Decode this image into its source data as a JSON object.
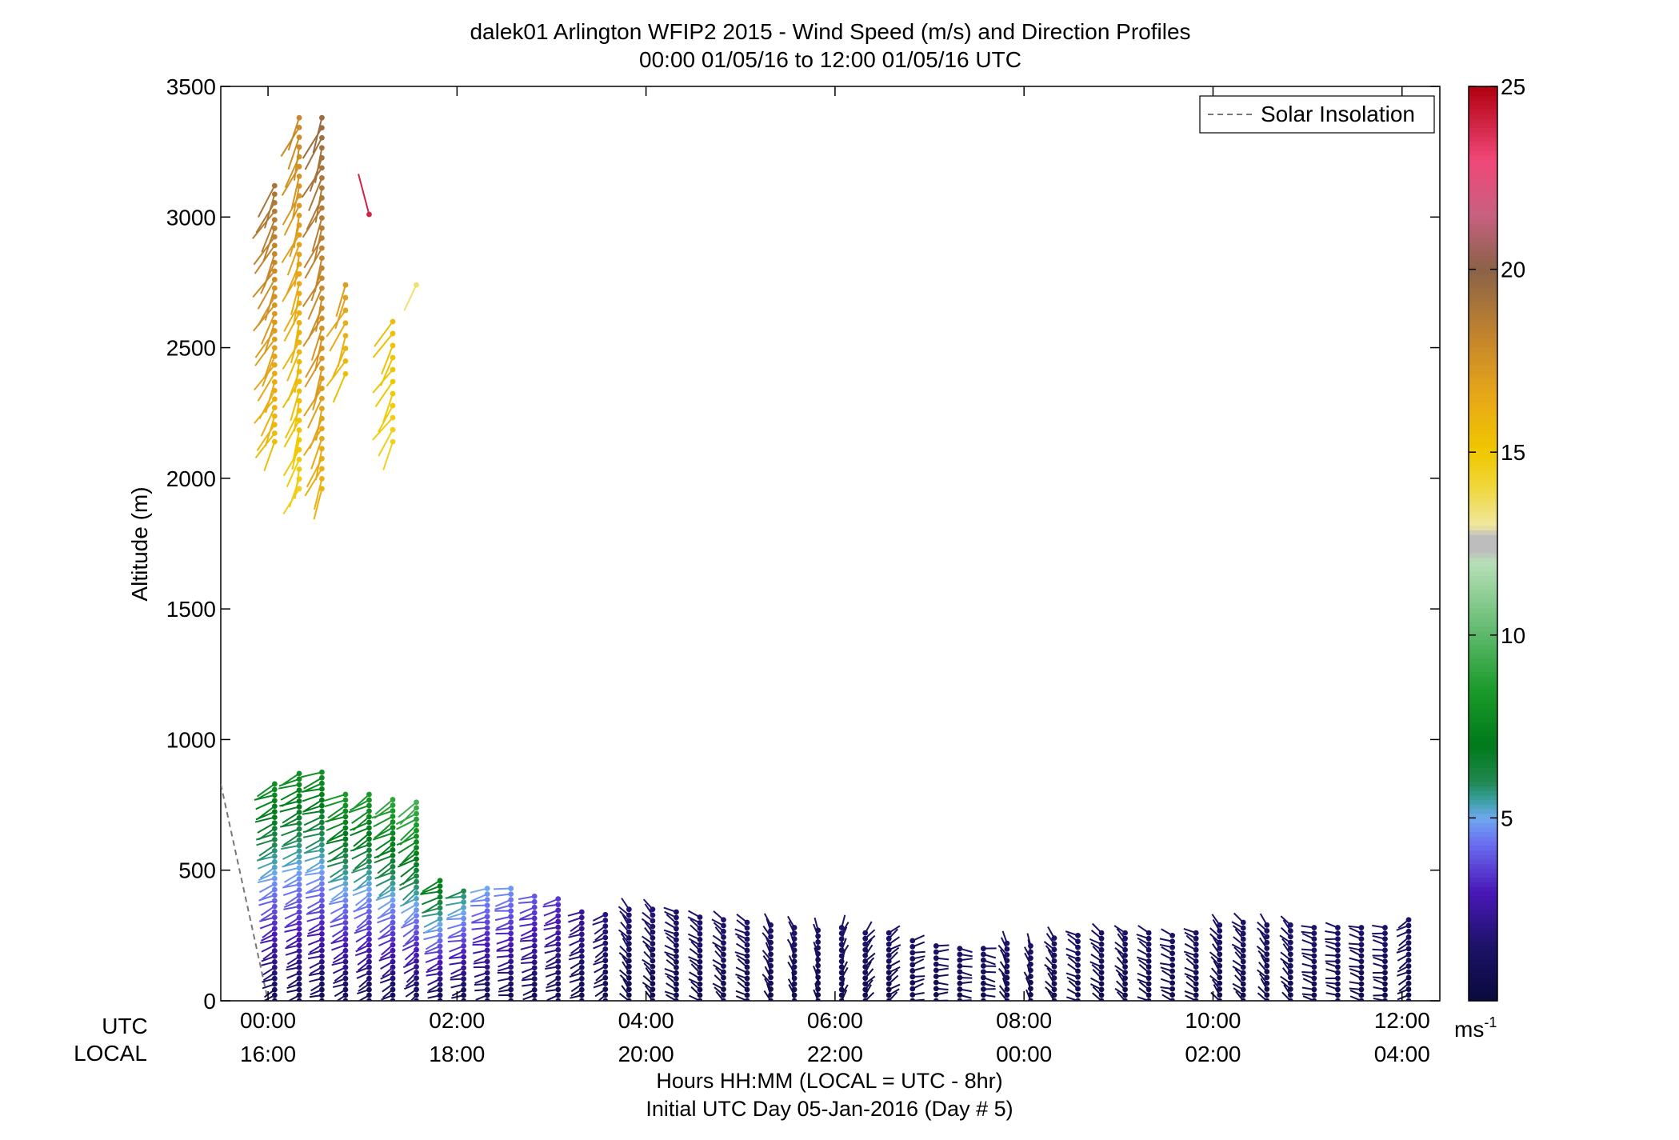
{
  "chart_data": {
    "type": "wind-barb-profile",
    "title": "dalek01 Arlington WFIP2 2015 - Wind Speed (m/s) and Direction Profiles",
    "subtitle": "00:00 01/05/16 to 12:00 01/05/16  UTC",
    "ylabel": "Altitude (m)",
    "ylim": [
      0,
      3500
    ],
    "yticks": [
      0,
      500,
      1000,
      1500,
      2000,
      2500,
      3000,
      3500
    ],
    "xlim_hours_utc": [
      -0.5,
      12.4
    ],
    "utc_row_label": "UTC",
    "local_row_label": "LOCAL",
    "utc_ticks": [
      "00:00",
      "02:00",
      "04:00",
      "06:00",
      "08:00",
      "10:00",
      "12:00"
    ],
    "local_ticks": [
      "16:00",
      "18:00",
      "20:00",
      "22:00",
      "00:00",
      "02:00",
      "04:00"
    ],
    "tick_hours_utc": [
      0,
      2,
      4,
      6,
      8,
      10,
      12
    ],
    "xlabel": "Hours HH:MM  (LOCAL = UTC - 8hr)",
    "xlabel2": "Initial UTC Day 05-Jan-2016 (Day # 5)",
    "legend": {
      "label": "Solar Insolation",
      "placement": "top-right",
      "style": "dashed",
      "color": "#777777"
    },
    "solar_insolation": {
      "x_hours": [
        -0.5,
        0.0
      ],
      "y_m": [
        830,
        0
      ]
    },
    "colorbar": {
      "min": 0,
      "max": 25,
      "ticks": [
        5,
        10,
        15,
        20,
        25
      ],
      "unit_label": "ms",
      "unit_exponent": "-1",
      "stops": [
        {
          "v": 0,
          "c": "#0a0a3c"
        },
        {
          "v": 1.5,
          "c": "#1c1268"
        },
        {
          "v": 3,
          "c": "#4a18b8"
        },
        {
          "v": 4.3,
          "c": "#6a6ef0"
        },
        {
          "v": 5,
          "c": "#70a8f0"
        },
        {
          "v": 5.5,
          "c": "#3aa0a0"
        },
        {
          "v": 6,
          "c": "#208850"
        },
        {
          "v": 7,
          "c": "#007a1a"
        },
        {
          "v": 8.5,
          "c": "#1a9a2a"
        },
        {
          "v": 10,
          "c": "#5cb86a"
        },
        {
          "v": 12,
          "c": "#b8e0b8"
        },
        {
          "v": 12.3,
          "c": "#bdbdbd"
        },
        {
          "v": 12.7,
          "c": "#bdbdbd"
        },
        {
          "v": 13,
          "c": "#f0e8a0"
        },
        {
          "v": 14,
          "c": "#f0d840"
        },
        {
          "v": 15,
          "c": "#f0c800"
        },
        {
          "v": 16.5,
          "c": "#e8a818"
        },
        {
          "v": 18,
          "c": "#c8882a"
        },
        {
          "v": 20,
          "c": "#8a6248"
        },
        {
          "v": 21.5,
          "c": "#c86080"
        },
        {
          "v": 23,
          "c": "#f04878"
        },
        {
          "v": 25,
          "c": "#b00010"
        }
      ]
    },
    "series": [
      {
        "time_h": 0.07,
        "upper": {
          "z": [
            2140,
            3120
          ],
          "n": 31,
          "speed": [
            15.5,
            19
          ],
          "dir": 208
        },
        "lower": {
          "z": [
            0,
            830
          ],
          "n": 40,
          "speed": [
            0.8,
            8
          ],
          "dir": 245
        }
      },
      {
        "time_h": 0.33,
        "upper": {
          "z": [
            1960,
            3380
          ],
          "n": 39,
          "speed": [
            14.5,
            18
          ],
          "dir": 200
        },
        "lower": {
          "z": [
            0,
            870
          ],
          "n": 42,
          "speed": [
            0.8,
            8
          ],
          "dir": 248
        }
      },
      {
        "time_h": 0.57,
        "upper": {
          "z": [
            1960,
            3380
          ],
          "n": 38,
          "speed": [
            16,
            19.5
          ],
          "dir": 202
        },
        "lower": {
          "z": [
            0,
            875
          ],
          "n": 42,
          "speed": [
            0.8,
            8
          ],
          "dir": 250
        }
      },
      {
        "time_h": 0.82,
        "upper": {
          "z": [
            2400,
            2740
          ],
          "n": 8,
          "speed": [
            15.5,
            17
          ],
          "dir": 205
        },
        "lower": {
          "z": [
            0,
            790
          ],
          "n": 38,
          "speed": [
            0.8,
            8.5
          ],
          "dir": 245
        }
      },
      {
        "time_h": 1.07,
        "upper": {
          "z": [
            3010,
            3010
          ],
          "n": 1,
          "speed": [
            24,
            24
          ],
          "dir": 335
        },
        "lower": {
          "z": [
            0,
            790
          ],
          "n": 38,
          "speed": [
            0.8,
            8.5
          ],
          "dir": 240
        }
      },
      {
        "time_h": 1.32,
        "upper": {
          "z": [
            2140,
            2600
          ],
          "n": 11,
          "speed": [
            14.5,
            15.5
          ],
          "dir": 210
        },
        "lower": {
          "z": [
            0,
            770
          ],
          "n": 37,
          "speed": [
            0.8,
            9
          ],
          "dir": 240
        }
      },
      {
        "time_h": 1.57,
        "upper": {
          "z": [
            2740,
            2740
          ],
          "n": 1,
          "speed": [
            13.5,
            13.5
          ],
          "dir": 200
        },
        "lower": {
          "z": [
            0,
            760
          ],
          "n": 36,
          "speed": [
            0.8,
            9.5
          ],
          "dir": 235
        }
      },
      {
        "time_h": 1.82,
        "lower": {
          "z": [
            0,
            460
          ],
          "n": 23,
          "speed": [
            0.8,
            7.5
          ],
          "dir": 250
        }
      },
      {
        "time_h": 2.07,
        "lower": {
          "z": [
            0,
            420
          ],
          "n": 21,
          "speed": [
            0.8,
            6
          ],
          "dir": 255
        }
      },
      {
        "time_h": 2.32,
        "lower": {
          "z": [
            0,
            430
          ],
          "n": 21,
          "speed": [
            0.8,
            5
          ],
          "dir": 258
        }
      },
      {
        "time_h": 2.57,
        "lower": {
          "z": [
            0,
            430
          ],
          "n": 21,
          "speed": [
            0.8,
            4.8
          ],
          "dir": 258
        }
      },
      {
        "time_h": 2.82,
        "lower": {
          "z": [
            0,
            400
          ],
          "n": 20,
          "speed": [
            0.8,
            4
          ],
          "dir": 255
        }
      },
      {
        "time_h": 3.07,
        "lower": {
          "z": [
            0,
            390
          ],
          "n": 19,
          "speed": [
            0.8,
            3.5
          ],
          "dir": 250
        }
      },
      {
        "time_h": 3.32,
        "lower": {
          "z": [
            0,
            340
          ],
          "n": 17,
          "speed": [
            0.8,
            2.5
          ],
          "dir": 245
        }
      },
      {
        "time_h": 3.57,
        "lower": {
          "z": [
            0,
            330
          ],
          "n": 16,
          "speed": [
            0.8,
            2
          ],
          "dir": 240
        }
      },
      {
        "time_h": 3.82,
        "lower": {
          "z": [
            0,
            350
          ],
          "n": 17,
          "speed": [
            0.6,
            1.8
          ],
          "dir": 320
        }
      },
      {
        "time_h": 4.07,
        "lower": {
          "z": [
            0,
            350
          ],
          "n": 17,
          "speed": [
            0.6,
            1.8
          ],
          "dir": 315
        }
      },
      {
        "time_h": 4.32,
        "lower": {
          "z": [
            0,
            340
          ],
          "n": 17,
          "speed": [
            0.6,
            1.6
          ],
          "dir": 300
        }
      },
      {
        "time_h": 4.57,
        "lower": {
          "z": [
            0,
            320
          ],
          "n": 16,
          "speed": [
            0.6,
            1.6
          ],
          "dir": 305
        }
      },
      {
        "time_h": 4.82,
        "lower": {
          "z": [
            0,
            310
          ],
          "n": 15,
          "speed": [
            0.6,
            1.6
          ],
          "dir": 310
        }
      },
      {
        "time_h": 5.07,
        "lower": {
          "z": [
            0,
            300
          ],
          "n": 15,
          "speed": [
            0.6,
            1.6
          ],
          "dir": 300
        }
      },
      {
        "time_h": 5.32,
        "lower": {
          "z": [
            0,
            290
          ],
          "n": 14,
          "speed": [
            0.6,
            1.5
          ],
          "dir": 330
        }
      },
      {
        "time_h": 5.57,
        "lower": {
          "z": [
            0,
            280
          ],
          "n": 14,
          "speed": [
            0.6,
            1.5
          ],
          "dir": 340
        }
      },
      {
        "time_h": 5.82,
        "lower": {
          "z": [
            0,
            270
          ],
          "n": 13,
          "speed": [
            0.6,
            1.4
          ],
          "dir": 350
        }
      },
      {
        "time_h": 6.07,
        "lower": {
          "z": [
            0,
            280
          ],
          "n": 14,
          "speed": [
            0.6,
            1.5
          ],
          "dir": 20
        }
      },
      {
        "time_h": 6.32,
        "lower": {
          "z": [
            0,
            260
          ],
          "n": 13,
          "speed": [
            0.6,
            1.4
          ],
          "dir": 40
        }
      },
      {
        "time_h": 6.57,
        "lower": {
          "z": [
            0,
            260
          ],
          "n": 13,
          "speed": [
            0.6,
            1.4
          ],
          "dir": 55
        }
      },
      {
        "time_h": 6.82,
        "lower": {
          "z": [
            0,
            230
          ],
          "n": 11,
          "speed": [
            0.6,
            1.4
          ],
          "dir": 75
        }
      },
      {
        "time_h": 7.07,
        "lower": {
          "z": [
            0,
            210
          ],
          "n": 10,
          "speed": [
            0.6,
            1.4
          ],
          "dir": 90
        }
      },
      {
        "time_h": 7.32,
        "lower": {
          "z": [
            0,
            200
          ],
          "n": 10,
          "speed": [
            0.6,
            1.4
          ],
          "dir": 95
        }
      },
      {
        "time_h": 7.57,
        "lower": {
          "z": [
            0,
            200
          ],
          "n": 10,
          "speed": [
            0.6,
            1.4
          ],
          "dir": 100
        }
      },
      {
        "time_h": 7.82,
        "lower": {
          "z": [
            0,
            220
          ],
          "n": 11,
          "speed": [
            0.6,
            1.4
          ],
          "dir": 330
        }
      },
      {
        "time_h": 8.07,
        "lower": {
          "z": [
            0,
            210
          ],
          "n": 10,
          "speed": [
            0.6,
            1.4
          ],
          "dir": 340
        }
      },
      {
        "time_h": 8.32,
        "lower": {
          "z": [
            0,
            240
          ],
          "n": 12,
          "speed": [
            0.6,
            1.4
          ],
          "dir": 320
        }
      },
      {
        "time_h": 8.57,
        "lower": {
          "z": [
            0,
            250
          ],
          "n": 12,
          "speed": [
            0.6,
            1.4
          ],
          "dir": 300
        }
      },
      {
        "time_h": 8.82,
        "lower": {
          "z": [
            0,
            260
          ],
          "n": 13,
          "speed": [
            0.6,
            1.4
          ],
          "dir": 305
        }
      },
      {
        "time_h": 9.07,
        "lower": {
          "z": [
            0,
            260
          ],
          "n": 13,
          "speed": [
            0.6,
            1.4
          ],
          "dir": 315
        }
      },
      {
        "time_h": 9.32,
        "lower": {
          "z": [
            0,
            260
          ],
          "n": 13,
          "speed": [
            0.6,
            1.4
          ],
          "dir": 300
        }
      },
      {
        "time_h": 9.57,
        "lower": {
          "z": [
            0,
            250
          ],
          "n": 12,
          "speed": [
            0.6,
            1.4
          ],
          "dir": 290
        }
      },
      {
        "time_h": 9.82,
        "lower": {
          "z": [
            0,
            260
          ],
          "n": 13,
          "speed": [
            0.6,
            1.4
          ],
          "dir": 300
        }
      },
      {
        "time_h": 10.07,
        "lower": {
          "z": [
            0,
            290
          ],
          "n": 14,
          "speed": [
            0.6,
            1.5
          ],
          "dir": 320
        }
      },
      {
        "time_h": 10.32,
        "lower": {
          "z": [
            0,
            300
          ],
          "n": 15,
          "speed": [
            0.6,
            1.5
          ],
          "dir": 310
        }
      },
      {
        "time_h": 10.57,
        "lower": {
          "z": [
            0,
            290
          ],
          "n": 14,
          "speed": [
            0.6,
            1.5
          ],
          "dir": 320
        }
      },
      {
        "time_h": 10.82,
        "lower": {
          "z": [
            0,
            290
          ],
          "n": 14,
          "speed": [
            0.6,
            1.5
          ],
          "dir": 315
        }
      },
      {
        "time_h": 11.07,
        "lower": {
          "z": [
            0,
            280
          ],
          "n": 14,
          "speed": [
            0.6,
            1.5
          ],
          "dir": 285
        }
      },
      {
        "time_h": 11.32,
        "lower": {
          "z": [
            0,
            280
          ],
          "n": 14,
          "speed": [
            0.6,
            1.5
          ],
          "dir": 280
        }
      },
      {
        "time_h": 11.57,
        "lower": {
          "z": [
            0,
            280
          ],
          "n": 14,
          "speed": [
            0.6,
            1.5
          ],
          "dir": 285
        }
      },
      {
        "time_h": 11.82,
        "lower": {
          "z": [
            0,
            280
          ],
          "n": 14,
          "speed": [
            0.6,
            1.5
          ],
          "dir": 280
        }
      },
      {
        "time_h": 12.07,
        "lower": {
          "z": [
            0,
            310
          ],
          "n": 15,
          "speed": [
            0.6,
            1.5
          ],
          "dir": 240
        }
      }
    ]
  }
}
